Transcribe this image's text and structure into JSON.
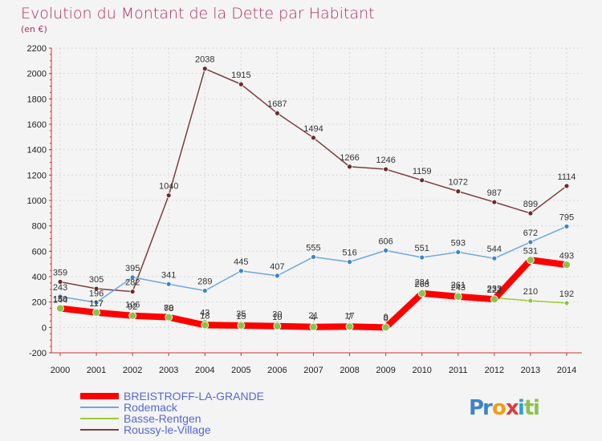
{
  "chart_data": {
    "type": "line",
    "title": "Evolution du Montant de la Dette par Habitant",
    "subtitle": "(en €)",
    "categories": [
      "2000",
      "2001",
      "2002",
      "2003",
      "2004",
      "2005",
      "2006",
      "2007",
      "2008",
      "2009",
      "2010",
      "2011",
      "2012",
      "2013",
      "2014"
    ],
    "ylim": [
      -200,
      2200
    ],
    "yticks": [
      -200,
      0,
      200,
      400,
      600,
      800,
      1000,
      1200,
      1400,
      1600,
      1800,
      2000,
      2200
    ],
    "grid": true,
    "legend_position": "bottom-left",
    "series": [
      {
        "name": "BREISTROFF-LA-GRANDE",
        "color": "#ff0000",
        "marker_color": "#8bc34a",
        "line_width": 8,
        "values": [
          150,
          117,
          92,
          80,
          18,
          15,
          10,
          4,
          7,
          0,
          268,
          243,
          222,
          531,
          493
        ],
        "labels_shown": true
      },
      {
        "name": "Rodemack",
        "color": "#6fa8dc",
        "marker_color": "#3d85c6",
        "line_width": 1.5,
        "values": [
          243,
          196,
          395,
          341,
          289,
          445,
          407,
          555,
          516,
          606,
          551,
          593,
          544,
          672,
          795
        ],
        "labels_shown": true
      },
      {
        "name": "Basse-Rentgen",
        "color": "#9acd32",
        "marker_color": "#8bc34a",
        "line_width": 1.5,
        "values": [
          144,
          117,
          106,
          78,
          43,
          35,
          30,
          21,
          17,
          9,
          284,
          261,
          233,
          210,
          192
        ],
        "labels_shown": true
      },
      {
        "name": "Roussy-le-Village",
        "color": "#7b3f3f",
        "marker_color": "#6b2c2c",
        "line_width": 1.5,
        "values": [
          359,
          305,
          282,
          1040,
          2038,
          1915,
          1687,
          1494,
          1266,
          1246,
          1159,
          1072,
          987,
          899,
          1114
        ],
        "labels_shown": true
      }
    ]
  },
  "colors": {
    "title": "#b03060",
    "legend_text": "#5566dd"
  },
  "logo": {
    "text": "Proxiti"
  }
}
